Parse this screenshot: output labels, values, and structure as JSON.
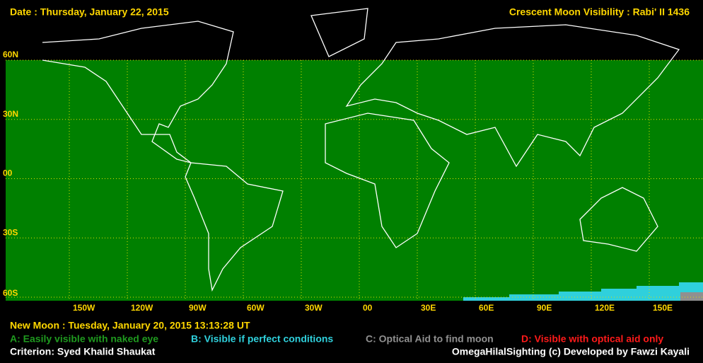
{
  "header": {
    "date": "Date : Thursday, January 22, 2015",
    "title": "Crescent Moon Visibility : Rabi' II  1436"
  },
  "map": {
    "lat_labels": [
      "60N",
      "30N",
      "00",
      "30S",
      "60S"
    ],
    "lon_labels": [
      "150W",
      "120W",
      "90W",
      "60W",
      "30W",
      "00",
      "30E",
      "60E",
      "90E",
      "120E",
      "150E"
    ]
  },
  "footer": {
    "new_moon": "New Moon : Tuesday, January 20, 2015  13:13:28  UT",
    "legend": [
      {
        "text": "A: Easily visible with naked eye",
        "color": "#1f9a1f"
      },
      {
        "text": "B: Visible if perfect conditions",
        "color": "#2fd0dc"
      },
      {
        "text": "C: Optical Aid to find moon",
        "color": "#909090"
      },
      {
        "text": "D: Visible with optical aid only",
        "color": "#ff1a1a"
      }
    ],
    "criterion": "Criterion: Syed Khalid Shaukat",
    "credit": "OmegaHilalSighting  (c)  Developed by Fawzi Kayali"
  }
}
